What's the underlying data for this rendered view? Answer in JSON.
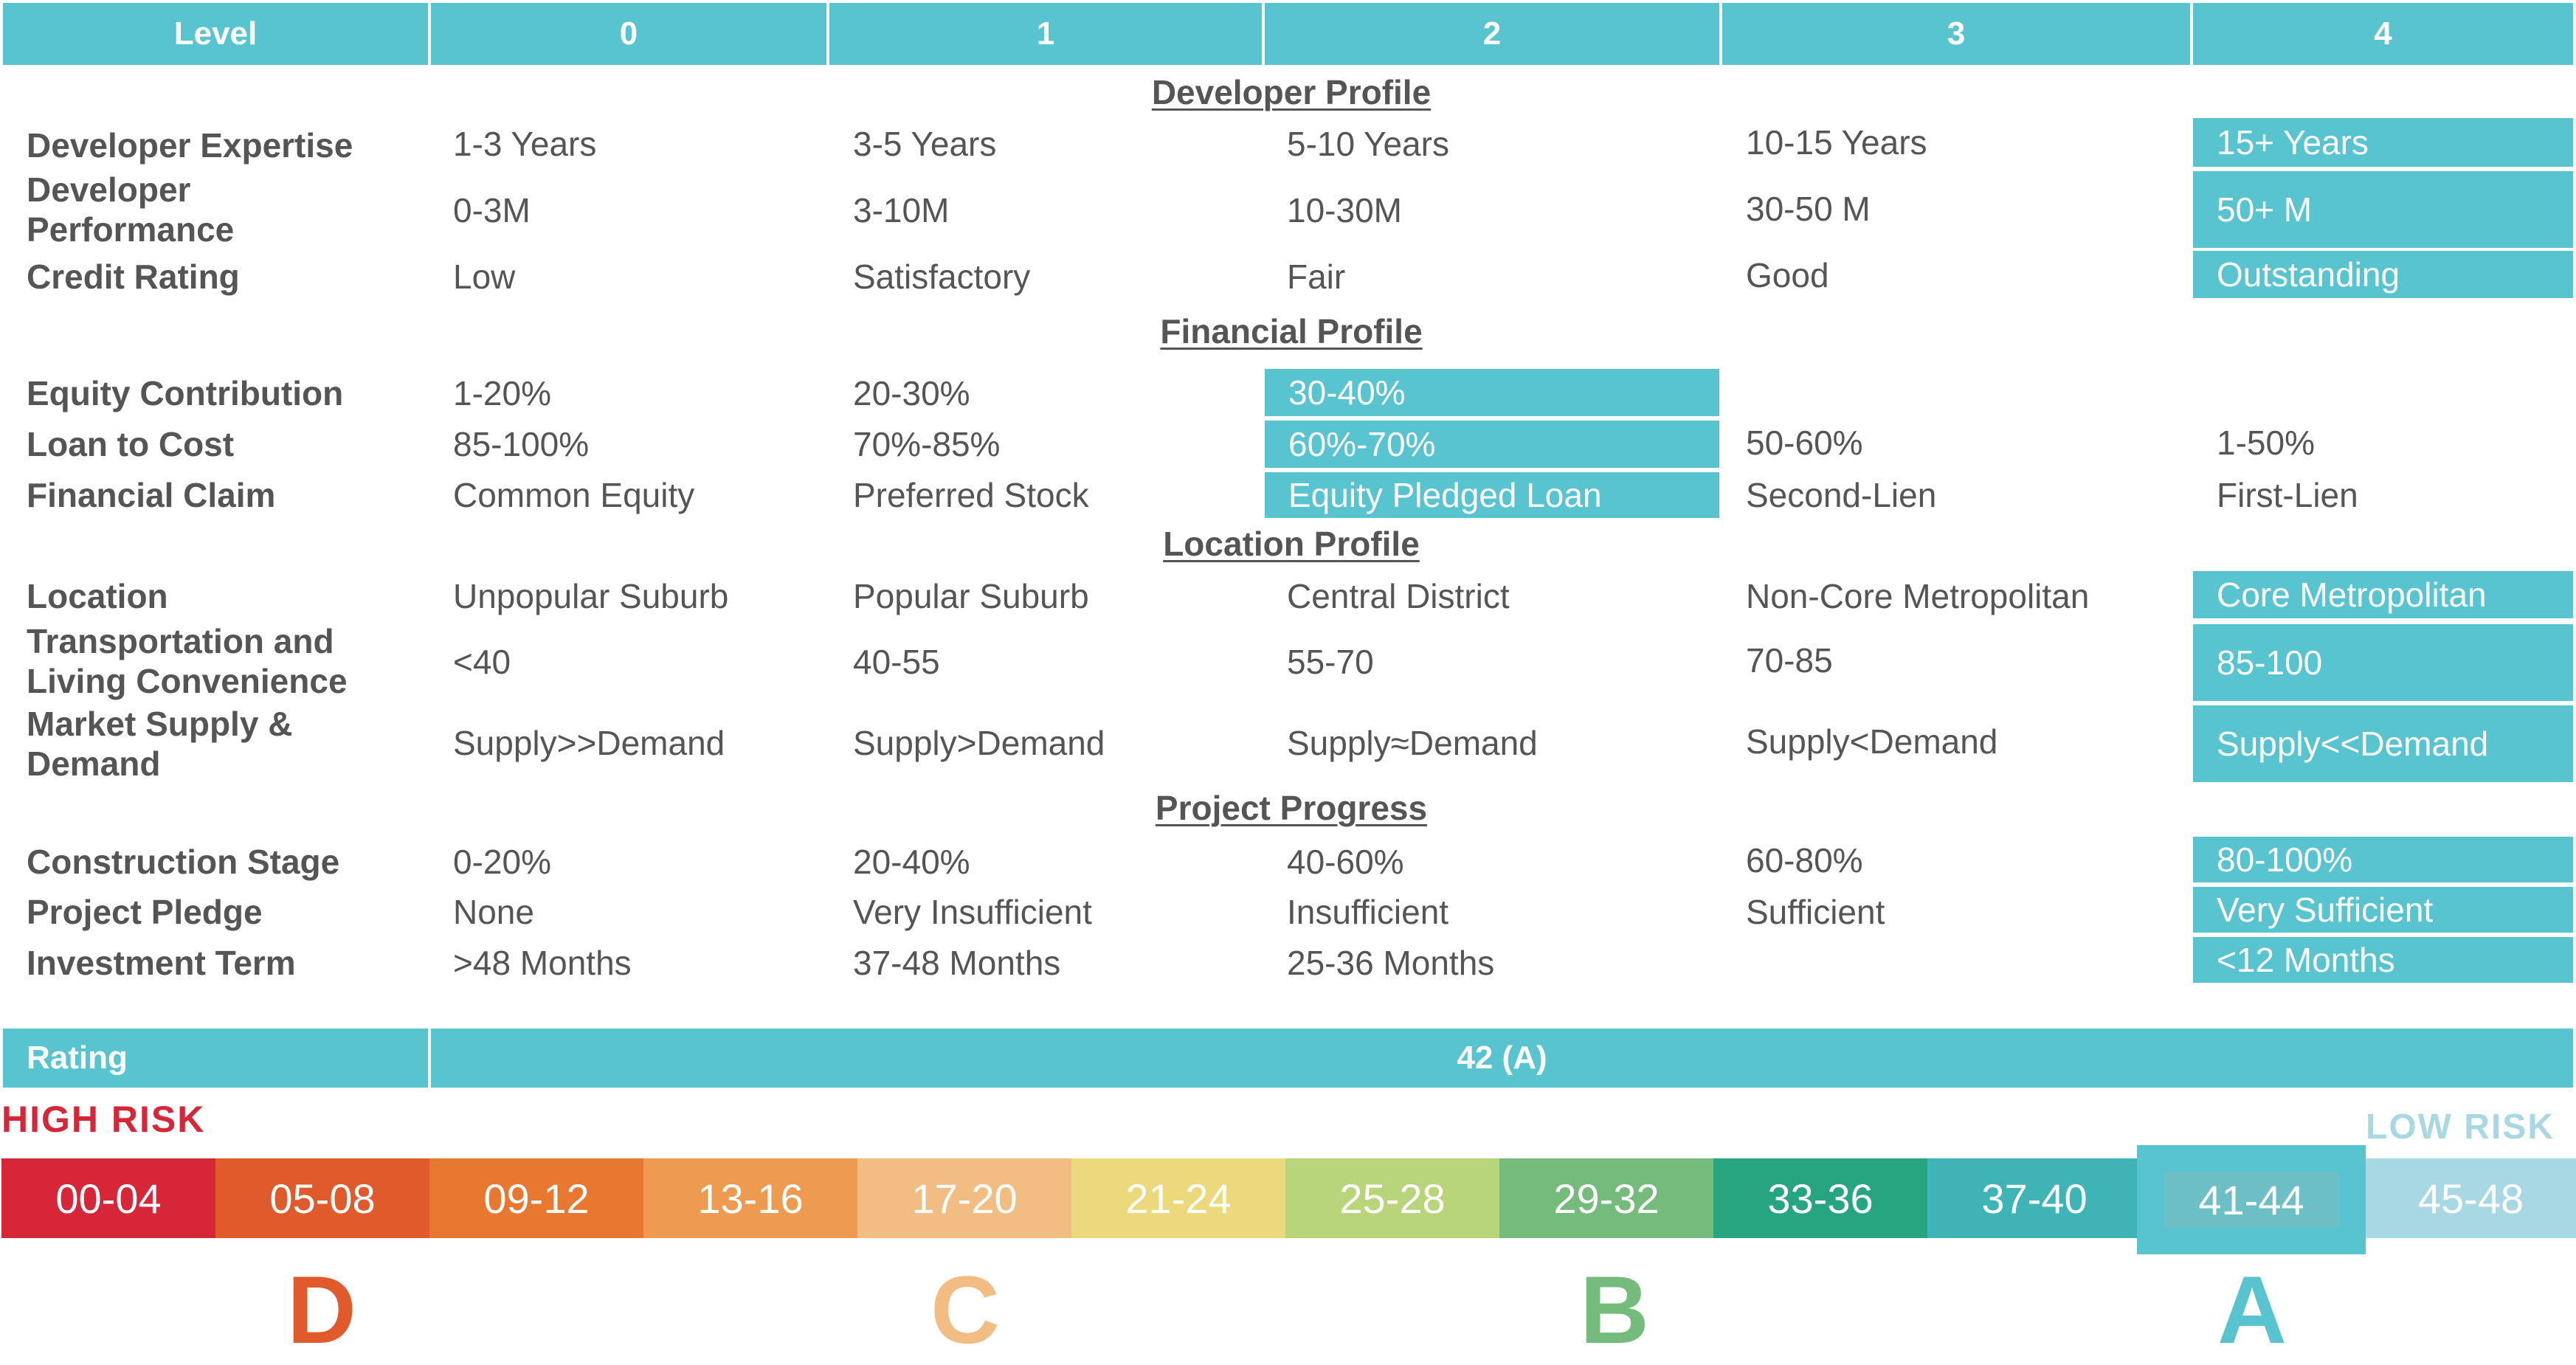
{
  "header": {
    "level_label": "Level",
    "levels": [
      "0",
      "1",
      "2",
      "3",
      "4"
    ]
  },
  "sections": {
    "developer": "Developer Profile",
    "financial": "Financial Profile",
    "location": "Location Profile",
    "progress": "Project Progress"
  },
  "rows": [
    {
      "label": "Developer Expertise",
      "values": [
        "1-3 Years",
        "3-5 Years",
        "5-10 Years",
        "10-15 Years",
        "15+  Years"
      ],
      "selected": 4
    },
    {
      "label": "Developer Performance",
      "values": [
        "0-3M",
        "3-10M",
        "10-30M",
        "30-50 M",
        "50+ M"
      ],
      "selected": 4
    },
    {
      "label": "Credit Rating",
      "values": [
        "Low",
        "Satisfactory",
        "Fair",
        "Good",
        "Outstanding"
      ],
      "selected": 4
    },
    {
      "label": "Equity Contribution",
      "values": [
        "1-20%",
        "20-30%",
        "30-40%",
        "",
        ""
      ],
      "selected": 2
    },
    {
      "label": "Loan to Cost",
      "values": [
        "85-100%",
        "70%-85%",
        "60%-70%",
        "50-60%",
        "1-50%"
      ],
      "selected": 2
    },
    {
      "label": "Financial Claim",
      "values": [
        "Common Equity",
        "Preferred Stock",
        "Equity Pledged Loan",
        "Second-Lien",
        "First-Lien"
      ],
      "selected": 2
    },
    {
      "label": "Location",
      "values": [
        "Unpopular Suburb",
        "Popular Suburb",
        "Central District",
        "Non-Core Metropolitan",
        "Core Metropolitan"
      ],
      "selected": 4
    },
    {
      "label": "Transportation and Living Convenience",
      "values": [
        "<40",
        "40-55",
        "55-70",
        "70-85",
        "85-100"
      ],
      "selected": 4
    },
    {
      "label": "Market Supply & Demand",
      "values": [
        "Supply>>Demand",
        "Supply>Demand",
        "Supply≈Demand",
        "Supply<Demand",
        "Supply<<Demand"
      ],
      "selected": 4
    },
    {
      "label": "Construction Stage",
      "values": [
        "0-20%",
        "20-40%",
        "40-60%",
        "60-80%",
        "80-100%"
      ],
      "selected": 4
    },
    {
      "label": "Project Pledge",
      "values": [
        "None",
        "Very Insufficient",
        "Insufficient",
        "Sufficient",
        "Very Sufficient"
      ],
      "selected": 4
    },
    {
      "label": "Investment Term",
      "values": [
        ">48 Months",
        "37-48 Months",
        "25-36 Months",
        "",
        "<12 Months"
      ],
      "selected": 4
    }
  ],
  "rating": {
    "label": "Rating",
    "value": "42 (A)"
  },
  "scale": {
    "high_risk": "HIGH RISK",
    "low_risk": "LOW RISK",
    "ranges": [
      "00-04",
      "05-08",
      "09-12",
      "13-16",
      "17-20",
      "21-24",
      "25-28",
      "29-32",
      "33-36",
      "37-40",
      "41-44",
      "45-48"
    ],
    "colors": [
      "#d72638",
      "#e05a2b",
      "#e8782f",
      "#ee9a50",
      "#f1bd82",
      "#ecd97c",
      "#b8d57a",
      "#74bb7c",
      "#26a57f",
      "#3fb4b6",
      "#6cbfc5",
      "#a8d8e3"
    ],
    "current_index": 10,
    "grades": [
      "D",
      "C",
      "B",
      "A"
    ],
    "grade_colors": [
      "#e05a2b",
      "#f1bd82",
      "#74bb7c",
      "#57c4d0"
    ]
  },
  "colors": {
    "accent": "#57c4d0",
    "text": "#555555",
    "high_risk": "#d72638",
    "low_risk": "#a8d8e3"
  }
}
